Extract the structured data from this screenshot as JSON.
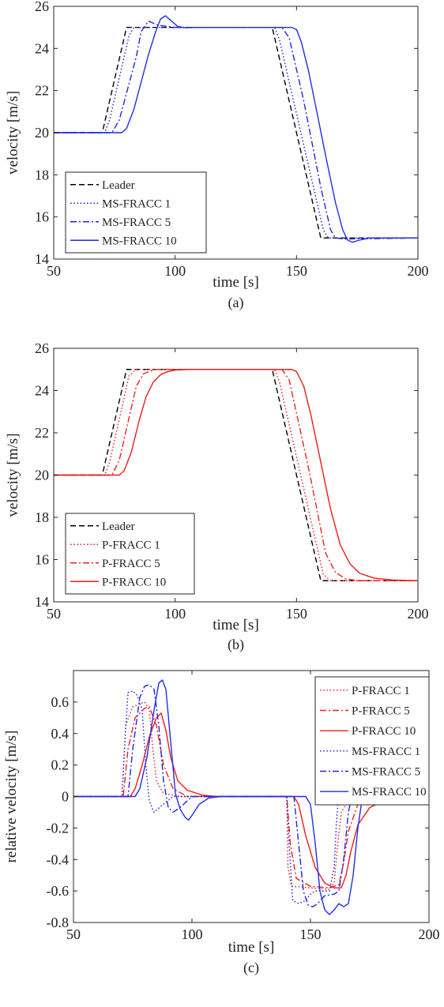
{
  "chart_data": [
    {
      "type": "line",
      "caption": "(a)",
      "xlabel": "time [s]",
      "ylabel": "velocity [m/s]",
      "xlim": [
        50,
        200
      ],
      "ylim": [
        14,
        26
      ],
      "xticks": [
        50,
        100,
        150,
        200
      ],
      "yticks": [
        14,
        16,
        18,
        20,
        22,
        24,
        26
      ],
      "grid": false,
      "legend_position": "bottom-left",
      "series": [
        {
          "name": "Leader",
          "color": "#000000",
          "style": "dashed",
          "x": [
            50,
            70,
            80,
            140,
            160,
            200
          ],
          "y": [
            20,
            20,
            25,
            25,
            15,
            15
          ]
        },
        {
          "name": "MS-FRACC 1",
          "color": "#2424dd",
          "style": "dotted",
          "x": [
            50,
            71,
            73,
            81,
            83,
            141,
            143,
            161,
            163,
            200
          ],
          "y": [
            20,
            20,
            20.6,
            24.6,
            25,
            25,
            24.4,
            15.4,
            15,
            15
          ]
        },
        {
          "name": "MS-FRACC 5",
          "color": "#2424dd",
          "style": "dashdot",
          "x": [
            50,
            74,
            77,
            84,
            86,
            89,
            93,
            100,
            144,
            147,
            153,
            160,
            164,
            166,
            170,
            200
          ],
          "y": [
            20,
            20,
            20.6,
            23.6,
            24.8,
            25.3,
            25.1,
            25,
            25,
            24.5,
            21.5,
            17.4,
            15.4,
            15,
            14.95,
            15
          ]
        },
        {
          "name": "MS-FRACC 10",
          "color": "#1f2ee8",
          "style": "solid",
          "x": [
            50,
            78,
            80,
            83,
            86,
            89,
            92,
            94,
            96,
            98,
            101,
            104,
            110,
            148,
            150,
            152,
            155,
            158,
            162,
            166,
            169,
            171,
            173,
            176,
            180,
            200
          ],
          "y": [
            20,
            20,
            20.2,
            21.1,
            22.4,
            23.7,
            24.8,
            25.4,
            25.55,
            25.35,
            25.05,
            24.98,
            25,
            25,
            24.9,
            24.3,
            22.9,
            21.2,
            18.9,
            16.7,
            15.4,
            14.9,
            14.8,
            14.9,
            15,
            15
          ]
        }
      ]
    },
    {
      "type": "line",
      "caption": "(b)",
      "xlabel": "time [s]",
      "ylabel": "velocity [m/s]",
      "xlim": [
        50,
        200
      ],
      "ylim": [
        14,
        26
      ],
      "xticks": [
        50,
        100,
        150,
        200
      ],
      "yticks": [
        14,
        16,
        18,
        20,
        22,
        24,
        26
      ],
      "grid": false,
      "legend_position": "bottom-left",
      "series": [
        {
          "name": "Leader",
          "color": "#000000",
          "style": "dashed",
          "x": [
            50,
            70,
            80,
            140,
            160,
            200
          ],
          "y": [
            20,
            20,
            25,
            25,
            15,
            15
          ]
        },
        {
          "name": "P-FRACC 1",
          "color": "#ee2020",
          "style": "dotted",
          "x": [
            50,
            71,
            73,
            81,
            84,
            141,
            143,
            161,
            164,
            200
          ],
          "y": [
            20,
            20,
            20.6,
            24.7,
            25,
            25,
            24.4,
            15.3,
            15,
            15
          ]
        },
        {
          "name": "P-FRACC 5",
          "color": "#ee2020",
          "style": "dashdot",
          "x": [
            50,
            74,
            77,
            84,
            87,
            92,
            144,
            147,
            155,
            162,
            166,
            170,
            175,
            200
          ],
          "y": [
            20,
            20,
            20.7,
            24.2,
            24.8,
            25,
            25,
            24.5,
            20.3,
            16.3,
            15.4,
            15.1,
            15,
            15
          ]
        },
        {
          "name": "P-FRACC 10",
          "color": "#ee1b1b",
          "style": "solid",
          "x": [
            50,
            77,
            79,
            82,
            85,
            88,
            91,
            94,
            97,
            100,
            105,
            148,
            150,
            153,
            156,
            160,
            164,
            168,
            172,
            176,
            182,
            190,
            200
          ],
          "y": [
            20,
            20,
            20.2,
            21.1,
            22.5,
            23.7,
            24.4,
            24.75,
            24.9,
            24.97,
            25,
            25,
            24.9,
            24.2,
            22.8,
            20.6,
            18.4,
            16.7,
            15.8,
            15.35,
            15.12,
            15.03,
            15
          ]
        }
      ]
    },
    {
      "type": "line",
      "caption": "(c)",
      "xlabel": "time [s]",
      "ylabel": "relative velocity [m/s]",
      "xlim": [
        50,
        200
      ],
      "ylim": [
        -0.8,
        0.8
      ],
      "xticks": [
        50,
        100,
        150,
        200
      ],
      "yticks": [
        -0.8,
        -0.6,
        -0.4,
        -0.2,
        0,
        0.2,
        0.4,
        0.6
      ],
      "grid": false,
      "legend_position": "top-right",
      "series": [
        {
          "name": "P-FRACC 1",
          "color": "#ee2020",
          "style": "dotted",
          "x": [
            50,
            70.5,
            72,
            75,
            78,
            80,
            82,
            83.5,
            85,
            88,
            95,
            140,
            140.5,
            142,
            150,
            158,
            160,
            161.5,
            163,
            166,
            172,
            200
          ],
          "y": [
            0,
            0,
            0.45,
            0.57,
            0.59,
            0.6,
            0.55,
            0.3,
            0.1,
            0.02,
            0,
            0,
            -0.45,
            -0.57,
            -0.58,
            -0.59,
            -0.55,
            -0.3,
            -0.1,
            -0.02,
            0,
            0
          ]
        },
        {
          "name": "P-FRACC 5",
          "color": "#ee2020",
          "style": "dashdot",
          "x": [
            50,
            71,
            73,
            76,
            80,
            82,
            85,
            88,
            92,
            98,
            140,
            141.5,
            144,
            150,
            158,
            162,
            164,
            166,
            170,
            176,
            200
          ],
          "y": [
            0,
            0,
            0.3,
            0.5,
            0.56,
            0.57,
            0.45,
            0.2,
            0.05,
            0,
            0,
            -0.3,
            -0.52,
            -0.57,
            -0.58,
            -0.56,
            -0.42,
            -0.22,
            -0.05,
            0,
            0
          ]
        },
        {
          "name": "P-FRACC 10",
          "color": "#ee1b1b",
          "style": "solid",
          "x": [
            50,
            74,
            76,
            79,
            82,
            85,
            87,
            89,
            91,
            94,
            98,
            104,
            110,
            143,
            145,
            148,
            152,
            156,
            160,
            163,
            165,
            167,
            170,
            175,
            182,
            190,
            200
          ],
          "y": [
            0,
            0,
            0.05,
            0.2,
            0.38,
            0.5,
            0.53,
            0.42,
            0.25,
            0.1,
            0.04,
            0.01,
            0,
            0,
            -0.05,
            -0.25,
            -0.45,
            -0.55,
            -0.58,
            -0.58,
            -0.5,
            -0.35,
            -0.18,
            -0.07,
            -0.02,
            0,
            0
          ]
        },
        {
          "name": "MS-FRACC 1",
          "color": "#2424dd",
          "style": "dotted",
          "x": [
            50,
            70.5,
            71.5,
            73,
            75,
            77,
            79,
            80.5,
            82,
            84,
            87,
            92,
            140,
            141,
            142.5,
            145,
            148,
            150,
            152,
            155,
            158,
            160,
            161,
            162,
            164,
            168,
            175,
            200
          ],
          "y": [
            0,
            0,
            0.3,
            0.66,
            0.67,
            0.64,
            0.55,
            0.2,
            -0.03,
            -0.1,
            -0.06,
            0,
            0,
            -0.3,
            -0.66,
            -0.68,
            -0.66,
            -0.62,
            -0.6,
            -0.6,
            -0.6,
            -0.45,
            -0.15,
            0.02,
            0.03,
            0.01,
            0,
            0
          ]
        },
        {
          "name": "MS-FRACC 5",
          "color": "#2424dd",
          "style": "dashdot",
          "x": [
            50,
            73,
            75,
            78,
            80,
            82,
            84,
            86,
            88,
            90,
            92,
            95,
            100,
            143,
            145,
            147,
            149,
            151,
            153,
            156,
            160,
            162,
            164,
            166,
            168,
            170,
            173,
            180,
            200
          ],
          "y": [
            0,
            0,
            0.3,
            0.63,
            0.7,
            0.71,
            0.68,
            0.45,
            0.1,
            -0.07,
            -0.1,
            -0.07,
            0,
            0,
            -0.3,
            -0.6,
            -0.69,
            -0.7,
            -0.68,
            -0.63,
            -0.62,
            -0.6,
            -0.4,
            -0.1,
            0.04,
            0.04,
            0.01,
            0,
            0
          ]
        },
        {
          "name": "MS-FRACC 10",
          "color": "#1f2ee8",
          "style": "solid",
          "x": [
            50,
            76,
            78,
            81,
            84,
            86,
            87.5,
            89,
            91,
            93,
            95,
            97,
            98.5,
            100,
            103,
            107,
            112,
            148,
            150,
            152,
            154,
            156,
            158,
            160,
            162,
            164,
            166,
            168,
            170,
            172,
            174,
            176,
            178,
            180,
            183,
            188,
            195,
            200
          ],
          "y": [
            0,
            0,
            0.05,
            0.25,
            0.55,
            0.72,
            0.74,
            0.68,
            0.35,
            0.02,
            -0.08,
            -0.13,
            -0.15,
            -0.12,
            -0.05,
            -0.01,
            0,
            0,
            -0.05,
            -0.3,
            -0.6,
            -0.72,
            -0.75,
            -0.72,
            -0.68,
            -0.7,
            -0.68,
            -0.5,
            -0.2,
            0.01,
            0.05,
            0.05,
            0.03,
            0.01,
            0,
            0,
            0,
            0
          ]
        }
      ]
    }
  ]
}
